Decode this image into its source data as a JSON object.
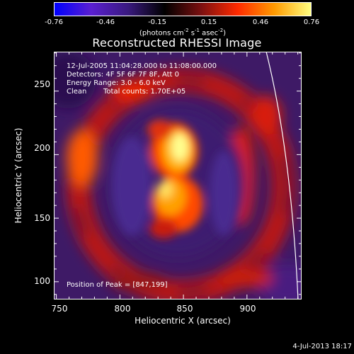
{
  "colorbar": {
    "ticks": [
      "-0.76",
      "-0.46",
      "-0.15",
      "0.15",
      "0.46",
      "0.76"
    ],
    "tick_values": [
      -0.76,
      -0.46,
      -0.15,
      0.15,
      0.46,
      0.76
    ],
    "unit_base": "(photons cm",
    "unit_exp1": "-2",
    "unit_mid": " s",
    "unit_exp2": "-1",
    "unit_mid2": " asec",
    "unit_exp3": "-2",
    "unit_end": ")",
    "colors": [
      "#0000ff",
      "#5a1fd0",
      "#3a1a80",
      "#000000",
      "#7a1010",
      "#ff2a00",
      "#ff9a00",
      "#ffff80"
    ]
  },
  "chart_data": {
    "type": "heatmap",
    "title": "Reconstructed RHESSI Image",
    "xlabel": "Heliocentric X (arcsec)",
    "ylabel": "Heliocentric Y (arcsec)",
    "xlim": [
      748,
      943
    ],
    "ylim": [
      86,
      281
    ],
    "x_ticks": [
      "750",
      "800",
      "850",
      "900"
    ],
    "x_tick_values": [
      750,
      800,
      850,
      900
    ],
    "y_ticks": [
      "100",
      "150",
      "200",
      "250"
    ],
    "y_tick_values": [
      100,
      150,
      200,
      250
    ],
    "peak_position": [
      847,
      199
    ],
    "info_lines": [
      "12-Jul-2005 11:04:28.000 to 11:08:00.000",
      "Detectors: 4F 5F 6F 7F 8F, Att 0",
      "Energy Range: 3.0 - 6.0 keV"
    ],
    "clean_label": "Clean",
    "total_counts": "Total counts: 1.70E+05",
    "peak_text": "Position of Peak = [847,199]",
    "limb_color": "#ffffff"
  },
  "footer": "4-Jul-2013 18:17"
}
